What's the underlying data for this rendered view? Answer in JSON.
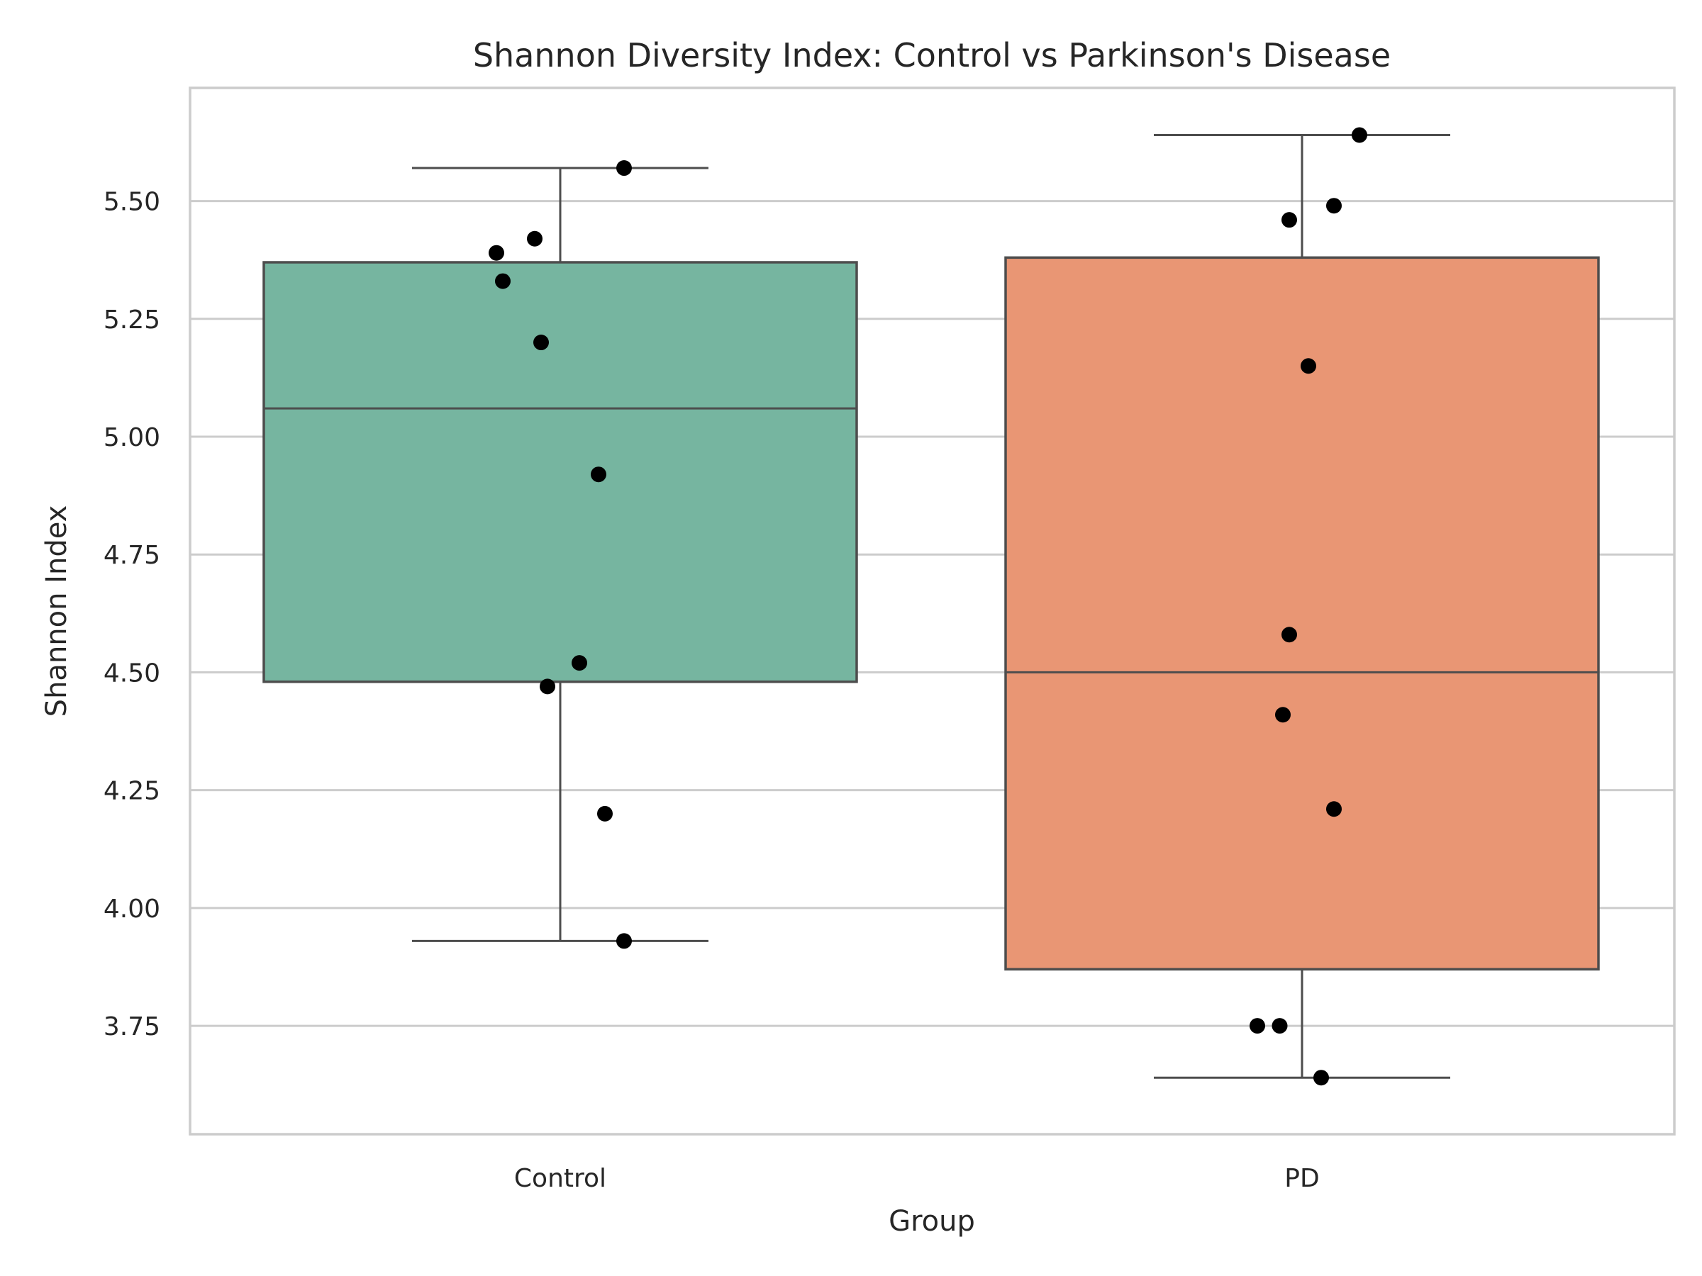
{
  "chart_data": {
    "type": "box",
    "title": "Shannon Diversity Index: Control vs Parkinson's Disease",
    "xlabel": "Group",
    "ylabel": "Shannon Index",
    "ylim": [
      3.52,
      5.74
    ],
    "yticks": [
      3.75,
      4.0,
      4.25,
      4.5,
      4.75,
      5.0,
      5.25,
      5.5
    ],
    "ytick_labels": [
      "3.75",
      "4.00",
      "4.25",
      "4.50",
      "4.75",
      "5.00",
      "5.25",
      "5.50"
    ],
    "grid": true,
    "categories": [
      "Control",
      "PD"
    ],
    "boxes": [
      {
        "category": "Control",
        "color": "#76b5a0",
        "whisker_low": 3.93,
        "q1": 4.48,
        "median": 5.06,
        "q3": 5.37,
        "whisker_high": 5.57,
        "points": [
          {
            "x": 0.1,
            "y": 5.57
          },
          {
            "x": -0.04,
            "y": 5.42
          },
          {
            "x": -0.1,
            "y": 5.39
          },
          {
            "x": -0.09,
            "y": 5.33
          },
          {
            "x": -0.03,
            "y": 5.2
          },
          {
            "x": 0.06,
            "y": 4.92
          },
          {
            "x": 0.03,
            "y": 4.52
          },
          {
            "x": -0.02,
            "y": 4.47
          },
          {
            "x": 0.07,
            "y": 4.2
          },
          {
            "x": 0.1,
            "y": 3.93
          }
        ]
      },
      {
        "category": "PD",
        "color": "#e99674",
        "whisker_low": 3.64,
        "q1": 3.87,
        "median": 4.5,
        "q3": 5.38,
        "whisker_high": 5.64,
        "points": [
          {
            "x": 0.09,
            "y": 5.64
          },
          {
            "x": 0.05,
            "y": 5.49
          },
          {
            "x": -0.02,
            "y": 5.46
          },
          {
            "x": 0.01,
            "y": 5.15
          },
          {
            "x": -0.02,
            "y": 4.58
          },
          {
            "x": -0.03,
            "y": 4.41
          },
          {
            "x": 0.05,
            "y": 4.21
          },
          {
            "x": -0.07,
            "y": 3.75
          },
          {
            "x": -0.035,
            "y": 3.75
          },
          {
            "x": 0.03,
            "y": 3.64
          }
        ]
      }
    ]
  }
}
